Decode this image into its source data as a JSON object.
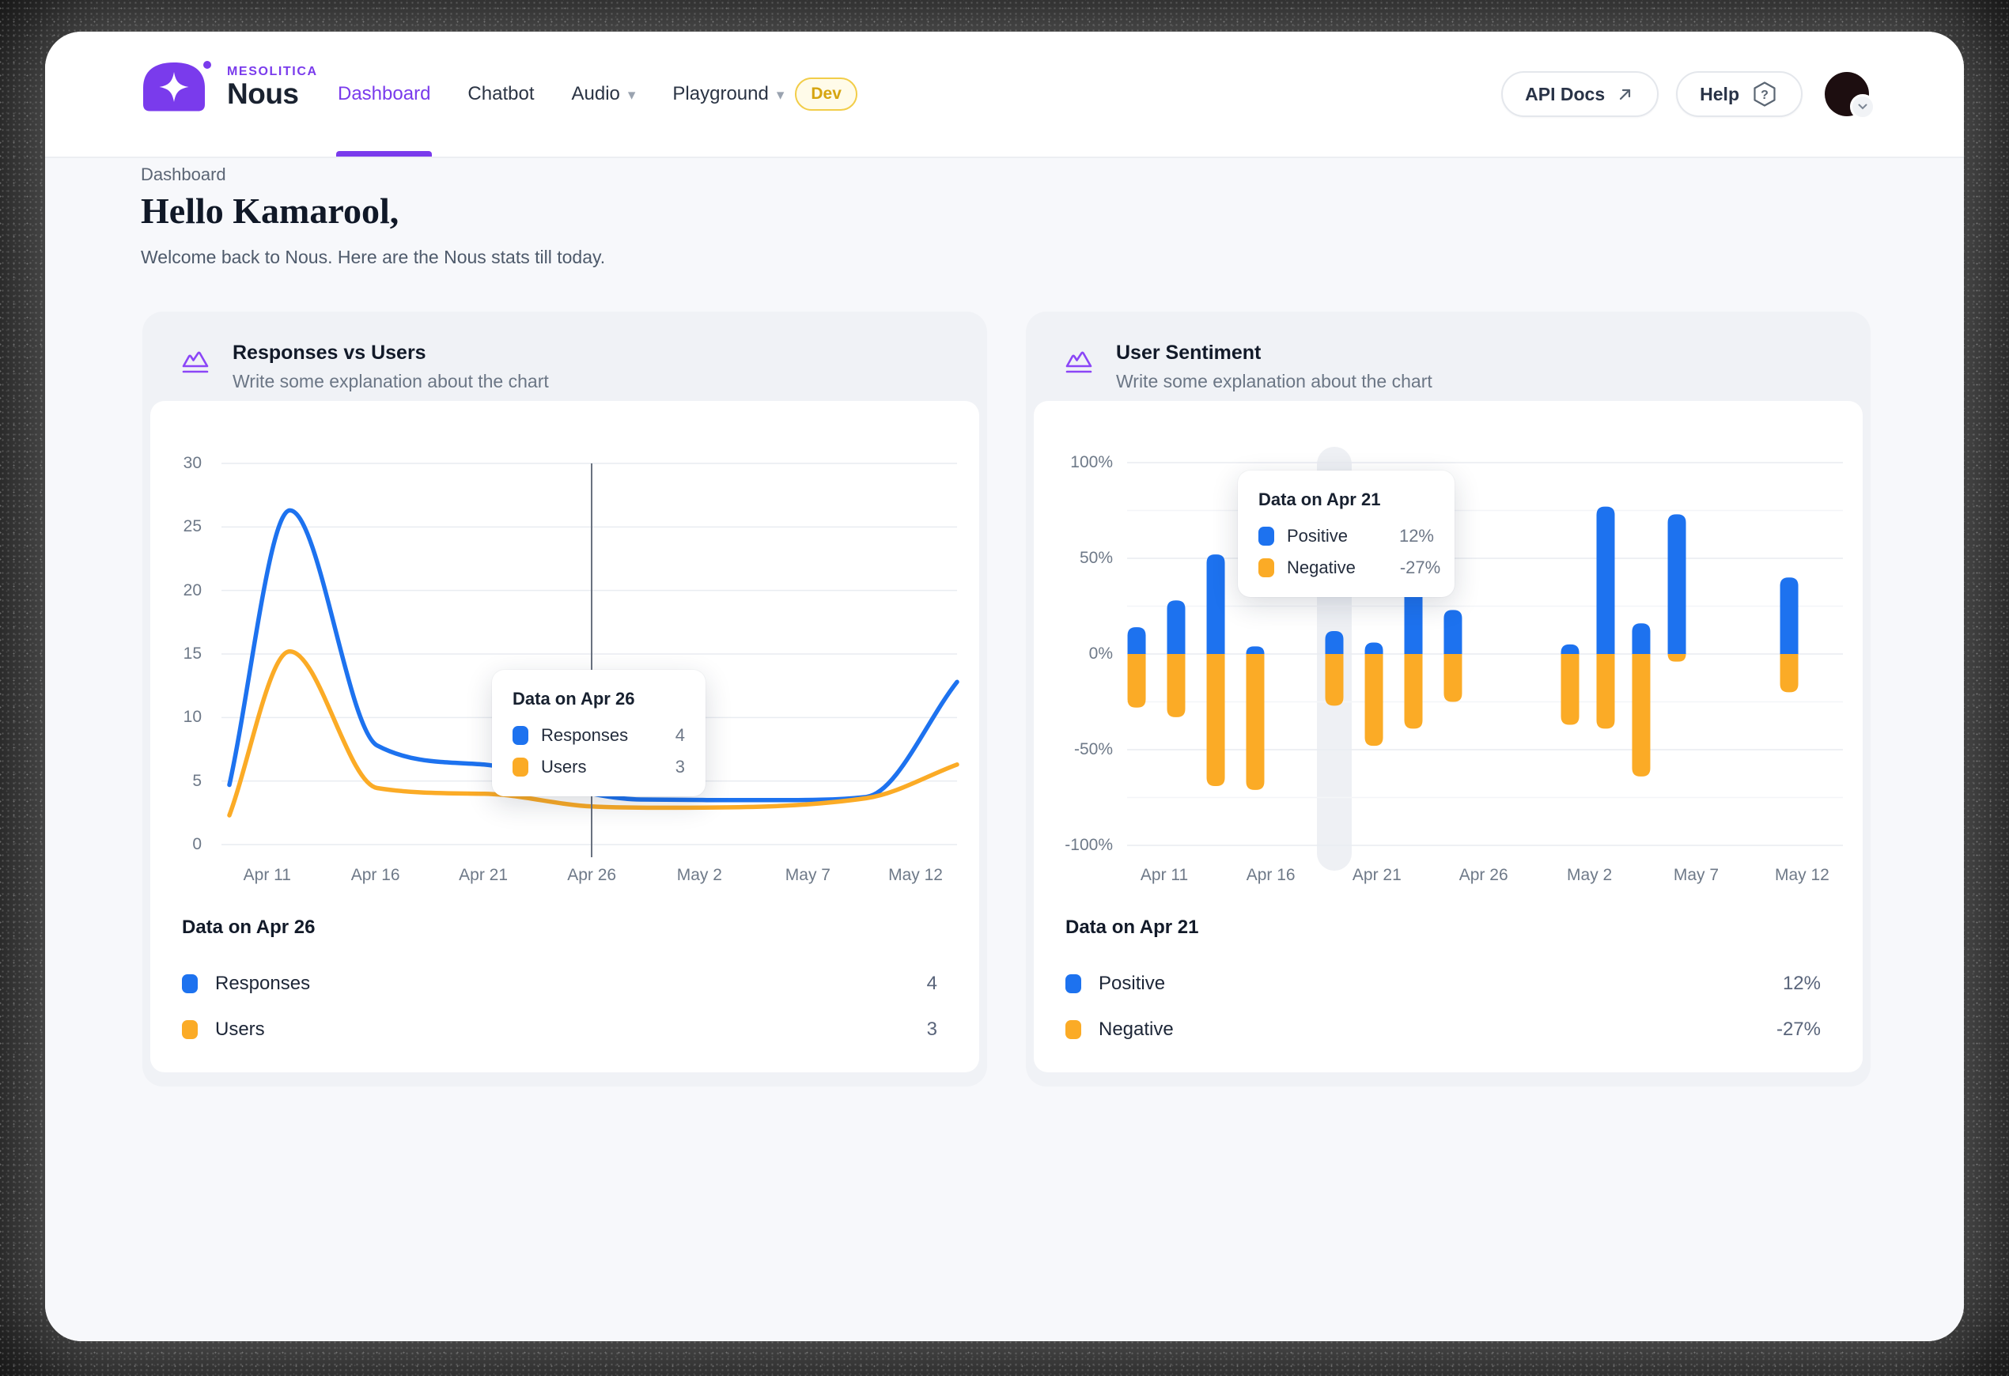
{
  "header": {
    "brand": {
      "company": "MESOLITICA",
      "product": "Nous"
    },
    "nav": [
      {
        "label": "Dashboard",
        "active": true
      },
      {
        "label": "Chatbot"
      },
      {
        "label": "Audio",
        "caret": true
      },
      {
        "label": "Playground",
        "caret": true,
        "badge": "Dev"
      }
    ],
    "api_docs_label": "API Docs",
    "help_label": "Help"
  },
  "page": {
    "breadcrumb": "Dashboard",
    "greeting": "Hello Kamarool,",
    "welcome": "Welcome back to Nous. Here are the Nous stats till today."
  },
  "colors": {
    "accent_purple": "#7a3bec",
    "series_blue": "#1d72ef",
    "series_orange": "#fbab26",
    "grid": "#e9ecf1",
    "grid_minor": "#f3f5f8",
    "axis_text": "#6e7988"
  },
  "chart_data": [
    {
      "type": "line",
      "title": "Responses vs Users",
      "subtitle": "Write some explanation about the chart",
      "ylim": [
        0,
        30
      ],
      "y_ticks": [
        30,
        25,
        20,
        15,
        10,
        5,
        0
      ],
      "x_ticks": [
        "Apr 11",
        "Apr 16",
        "Apr 21",
        "Apr 26",
        "May 2",
        "May 7",
        "May 12"
      ],
      "grid": true,
      "legend_position": "bottom",
      "series": [
        {
          "name": "Responses",
          "color": "#1d72ef",
          "points": [
            [
              0,
              4.7
            ],
            [
              0.083,
              26.3
            ],
            [
              0.203,
              7.8
            ],
            [
              0.35,
              6.3
            ],
            [
              0.498,
              4
            ],
            [
              0.565,
              3.55
            ],
            [
              0.75,
              3.5
            ],
            [
              0.875,
              3.75
            ],
            [
              1,
              12.8
            ]
          ]
        },
        {
          "name": "Users",
          "color": "#fbab26",
          "points": [
            [
              0,
              2.3
            ],
            [
              0.083,
              15.2
            ],
            [
              0.203,
              4.45
            ],
            [
              0.35,
              4
            ],
            [
              0.498,
              3
            ],
            [
              0.6,
              2.9
            ],
            [
              0.875,
              3.65
            ],
            [
              1,
              6.3
            ]
          ]
        }
      ],
      "cursor_x": 0.498,
      "tooltip": {
        "title": "Data on Apr 26",
        "rows": [
          {
            "name": "Responses",
            "value": "4",
            "color": "#1d72ef"
          },
          {
            "name": "Users",
            "value": "3",
            "color": "#fbab26"
          }
        ]
      },
      "summary": {
        "title": "Data on Apr 26",
        "rows": [
          {
            "name": "Responses",
            "value": "4",
            "color": "#1d72ef"
          },
          {
            "name": "Users",
            "value": "3",
            "color": "#fbab26"
          }
        ]
      }
    },
    {
      "type": "bar",
      "title": "User Sentiment",
      "subtitle": "Write some explanation about the chart",
      "ylim": [
        -100,
        100
      ],
      "y_ticks": [
        "100%",
        "50%",
        "0%",
        "-50%",
        "-100%"
      ],
      "x_ticks": [
        "Apr 11",
        "Apr 16",
        "Apr 21",
        "Apr 26",
        "May 2",
        "May 7",
        "May 12"
      ],
      "grid": true,
      "legend_position": "bottom",
      "series": [
        {
          "name": "Positive",
          "color": "#1d72ef"
        },
        {
          "name": "Negative",
          "color": "#fbab26"
        }
      ],
      "bars": [
        {
          "x": 0.0133,
          "positive": 14,
          "negative": -28
        },
        {
          "x": 0.0685,
          "positive": 28,
          "negative": -33
        },
        {
          "x": 0.1238,
          "positive": 52,
          "negative": -69
        },
        {
          "x": 0.179,
          "positive": 4,
          "negative": -71
        },
        {
          "x": 0.2895,
          "positive": 12,
          "negative": -27,
          "highlight": true
        },
        {
          "x": 0.3448,
          "positive": 6,
          "negative": -48
        },
        {
          "x": 0.4,
          "positive": 38,
          "negative": -39
        },
        {
          "x": 0.4552,
          "positive": 23,
          "negative": -25
        },
        {
          "x": 0.6188,
          "positive": 5,
          "negative": -37
        },
        {
          "x": 0.6685,
          "positive": 77,
          "negative": -39
        },
        {
          "x": 0.7182,
          "positive": 16,
          "negative": -64
        },
        {
          "x": 0.768,
          "positive": 73,
          "negative": -4
        },
        {
          "x": 0.9249,
          "positive": 40,
          "negative": -20
        }
      ],
      "tooltip": {
        "title": "Data on Apr 21",
        "rows": [
          {
            "name": "Positive",
            "value": "12%",
            "color": "#1d72ef"
          },
          {
            "name": "Negative",
            "value": "-27%",
            "color": "#fbab26"
          }
        ]
      },
      "summary": {
        "title": "Data on Apr 21",
        "rows": [
          {
            "name": "Positive",
            "value": "12%",
            "color": "#1d72ef"
          },
          {
            "name": "Negative",
            "value": "-27%",
            "color": "#fbab26"
          }
        ]
      }
    }
  ]
}
